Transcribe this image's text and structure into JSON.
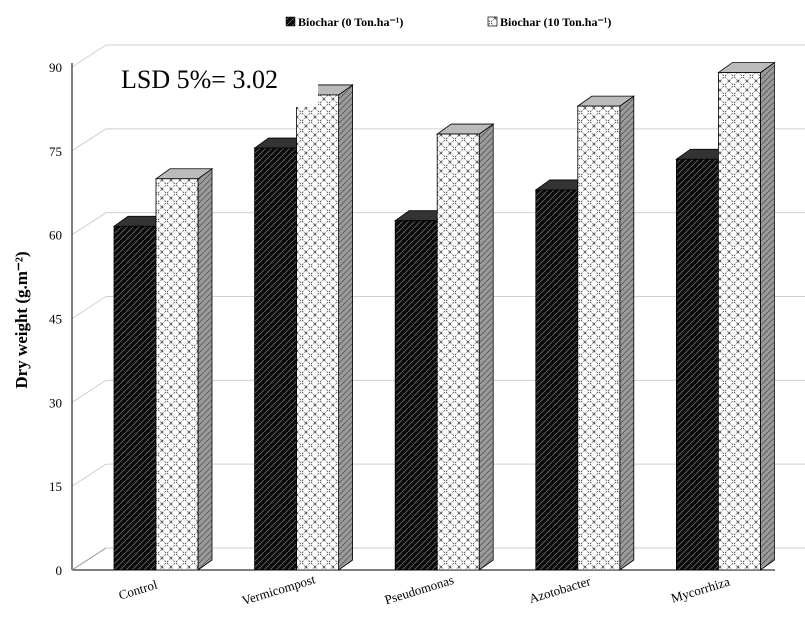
{
  "chart_data": {
    "type": "bar",
    "categories": [
      "Control",
      "Vermicompost",
      "Pseudomonas",
      "Azotobacter",
      "Mycorrhiza"
    ],
    "series": [
      {
        "name": "Biochar (0 Ton.ha⁻¹)",
        "values": [
          61.5,
          75.5,
          62.5,
          68,
          73.5
        ],
        "pattern": "dark",
        "color": "#111111"
      },
      {
        "name": "Biochar (10 Ton.ha⁻¹)",
        "values": [
          70,
          85,
          78,
          83,
          89
        ],
        "pattern": "light",
        "color": "#ffffff"
      }
    ],
    "ylabel": "Dry weight (g.m⁻²)",
    "yticks": [
      0,
      15,
      30,
      45,
      60,
      75,
      90
    ],
    "ylim": [
      0,
      90
    ],
    "annotation": "LSD 5%= 3.02",
    "legend_position": "top",
    "grid": true
  }
}
